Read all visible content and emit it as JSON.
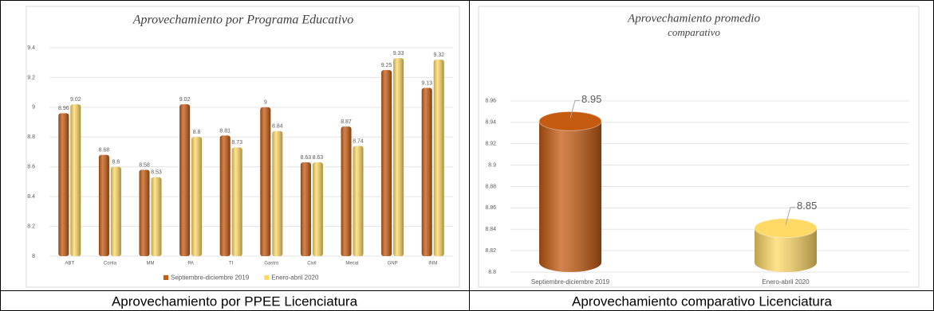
{
  "chart_data": [
    {
      "type": "bar",
      "title": "Aprovechamiento por Programa Educativo",
      "categories": [
        "ABT",
        "Conta",
        "MM",
        "PA",
        "TI",
        "Gastro",
        "Civil",
        "Mecat",
        "GNP",
        "INM"
      ],
      "series": [
        {
          "name": "Septiembre-diciembre 2019",
          "color": "#c55a11",
          "values": [
            8.96,
            8.68,
            8.58,
            9.02,
            8.81,
            9,
            8.63,
            8.87,
            9.25,
            9.13
          ]
        },
        {
          "name": "Enero-abril 2020",
          "color": "#ffd966",
          "values": [
            9.02,
            8.6,
            8.53,
            8.8,
            8.73,
            8.84,
            8.63,
            8.74,
            9.33,
            9.32
          ]
        }
      ],
      "ylim": [
        8,
        9.4
      ],
      "yticks": [
        8,
        8.2,
        8.4,
        8.6,
        8.8,
        9,
        9.2,
        9.4
      ],
      "grid": true,
      "legend": "bottom"
    },
    {
      "type": "cylinder",
      "title": "Aprovechamiento promedio",
      "subtitle": "comparativo",
      "categories": [
        "Septiembre-diciembre 2019",
        "Enero-abril 2020"
      ],
      "values": [
        8.95,
        8.85
      ],
      "colors": [
        "#c55a11",
        "#ffd966"
      ],
      "ylim": [
        8.8,
        8.98
      ],
      "yticks": [
        8.8,
        8.82,
        8.84,
        8.86,
        8.88,
        8.9,
        8.92,
        8.94,
        8.96
      ],
      "grid": true
    }
  ],
  "captions": [
    "Aprovechamiento por PPEE Licenciatura",
    "Aprovechamiento comparativo Licenciatura"
  ]
}
